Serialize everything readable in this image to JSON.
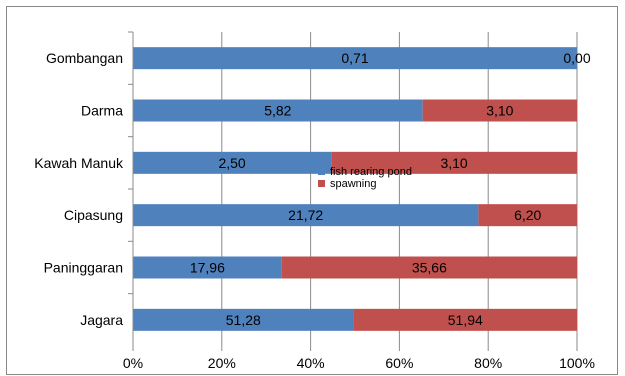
{
  "chart_data": {
    "type": "bar",
    "orientation": "horizontal",
    "stacked": "percent",
    "categories": [
      "Gombangan",
      "Darma",
      "Kawah Manuk",
      "Cipasung",
      "Paninggaran",
      "Jagara"
    ],
    "series": [
      {
        "name": "fish rearing pond",
        "color": "#4f81bd",
        "values": [
          0.71,
          5.82,
          2.5,
          21.72,
          17.96,
          51.28
        ],
        "labels": [
          "0,71",
          "5,82",
          "2,50",
          "21,72",
          "17,96",
          "51,28"
        ]
      },
      {
        "name": "spawning",
        "color": "#c0504d",
        "values": [
          0.0,
          3.1,
          3.1,
          6.2,
          35.66,
          51.94
        ],
        "labels": [
          "0,00",
          "3,10",
          "3,10",
          "6,20",
          "35,66",
          "51,94"
        ]
      }
    ],
    "xticks": [
      "0%",
      "20%",
      "40%",
      "60%",
      "80%",
      "100%"
    ],
    "xlim": [
      0,
      100
    ],
    "grid": true,
    "legend_position": "center",
    "title": "",
    "xlabel": "",
    "ylabel": ""
  }
}
